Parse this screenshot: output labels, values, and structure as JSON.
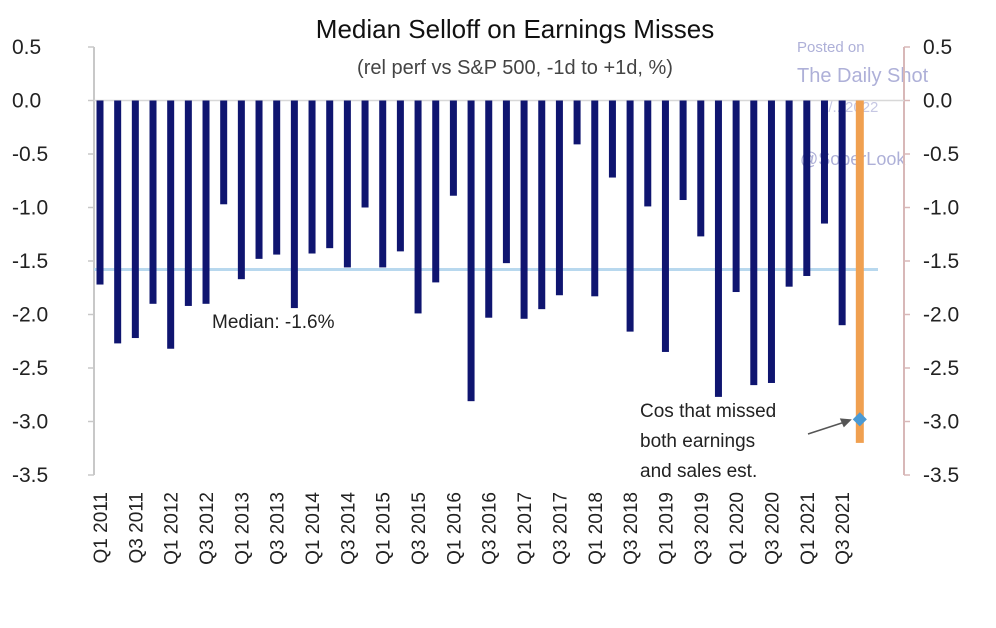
{
  "chart_data": {
    "type": "bar",
    "title": "Median Selloff on Earnings Misses",
    "subtitle": "(rel perf vs S&P 500, -1d to +1d, %)",
    "xlabel": "",
    "ylabel": "",
    "ylim": [
      -3.5,
      0.5
    ],
    "yticks": [
      "0.5",
      "0.0",
      "-0.5",
      "-1.0",
      "-1.5",
      "-2.0",
      "-2.5",
      "-3.0",
      "-3.5"
    ],
    "categories": [
      "Q1 2011",
      "Q2 2011",
      "Q3 2011",
      "Q4 2011",
      "Q1 2012",
      "Q2 2012",
      "Q3 2012",
      "Q4 2012",
      "Q1 2013",
      "Q2 2013",
      "Q3 2013",
      "Q4 2013",
      "Q1 2014",
      "Q2 2014",
      "Q3 2014",
      "Q4 2014",
      "Q1 2015",
      "Q2 2015",
      "Q3 2015",
      "Q4 2015",
      "Q1 2016",
      "Q2 2016",
      "Q3 2016",
      "Q4 2016",
      "Q1 2017",
      "Q2 2017",
      "Q3 2017",
      "Q4 2017",
      "Q1 2018",
      "Q2 2018",
      "Q3 2018",
      "Q4 2018",
      "Q1 2019",
      "Q2 2019",
      "Q3 2019",
      "Q4 2019",
      "Q1 2020",
      "Q2 2020",
      "Q3 2020",
      "Q4 2020",
      "Q1 2021",
      "Q2 2021",
      "Q3 2021",
      "Q4 2021"
    ],
    "xtick_labels": [
      "Q1 2011",
      "Q3 2011",
      "Q1 2012",
      "Q3 2012",
      "Q1 2013",
      "Q3 2013",
      "Q1 2014",
      "Q3 2014",
      "Q1 2015",
      "Q3 2015",
      "Q1 2016",
      "Q3 2016",
      "Q1 2017",
      "Q3 2017",
      "Q1 2018",
      "Q3 2018",
      "Q1 2019",
      "Q3 2019",
      "Q1 2020",
      "Q3 2020",
      "Q1 2021",
      "Q3 2021"
    ],
    "series": [
      {
        "color": "#0f1570",
        "values": [
          -1.72,
          -2.27,
          -2.22,
          -1.9,
          -2.32,
          -1.92,
          -1.9,
          -0.97,
          -1.67,
          -1.48,
          -1.44,
          -1.94,
          -1.43,
          -1.38,
          -1.56,
          -1.0,
          -1.56,
          -1.41,
          -1.99,
          -1.7,
          -0.89,
          -2.81,
          -2.03,
          -1.52,
          -2.04,
          -1.95,
          -1.82,
          -0.41,
          -1.83,
          -0.72,
          -2.16,
          -0.99,
          -2.35,
          -0.93,
          -1.27,
          -2.77,
          -1.79,
          -2.66,
          -2.64,
          -1.74,
          -1.64,
          -1.15,
          -2.1,
          null
        ]
      }
    ],
    "highlight": {
      "category": "Q4 2021",
      "value": -3.2,
      "point_value": -2.98,
      "color": "#f0a050",
      "point_color": "#4a9ad4",
      "annotation": [
        "Cos that missed",
        "both earnings",
        "and sales est."
      ]
    },
    "median": {
      "value": -1.58,
      "label": "Median: -1.6%",
      "color": "#b8d8ee"
    },
    "grid": false,
    "legend": "none"
  },
  "watermark": {
    "line1": "Posted on",
    "line2": "The Daily Shot",
    "line3": "1/...2022",
    "line4": "@SoberLook"
  },
  "colors": {
    "axis_left": "#c8c8c8",
    "axis_right": "#d8b8b8",
    "zero_line": "#d8d8d8",
    "arrow": "#555555"
  }
}
